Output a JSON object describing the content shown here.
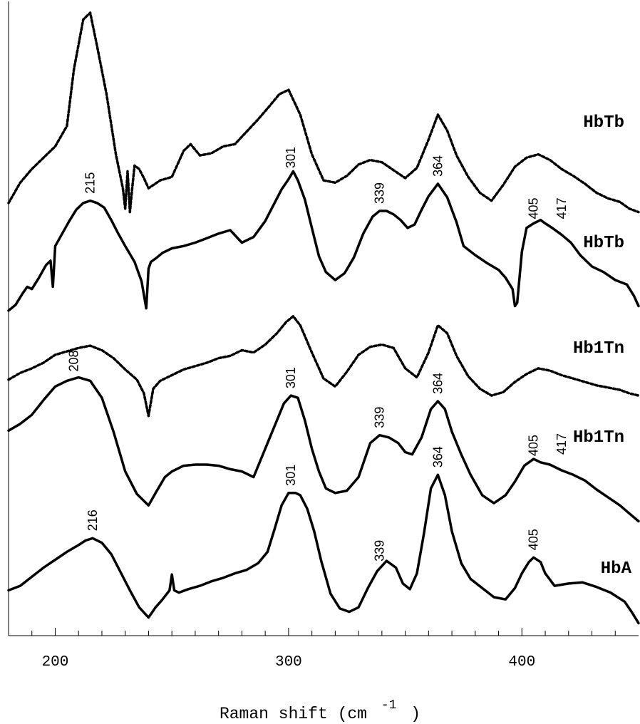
{
  "chart_data": {
    "type": "line",
    "title": "",
    "xlabel": "Raman shift (cm",
    "xlabel_sup": "-1",
    "xlabel_close": ")",
    "xlim": [
      180,
      450
    ],
    "xticks": [
      200,
      300,
      400
    ],
    "xtick_labels": [
      "200",
      "300",
      "400"
    ],
    "ylabel": "",
    "grid": false,
    "series": [
      {
        "name": "HbTb",
        "style": "dotted",
        "peaks": [],
        "x": [
          180,
          185,
          190,
          195,
          200,
          205,
          208,
          212,
          215,
          218,
          222,
          226,
          229,
          230,
          231,
          232,
          233,
          234,
          236,
          238,
          240,
          245,
          250,
          255,
          258,
          262,
          267,
          272,
          277,
          282,
          287,
          292,
          296,
          300,
          305,
          310,
          315,
          320,
          325,
          330,
          335,
          340,
          345,
          350,
          355,
          360,
          364,
          368,
          372,
          377,
          382,
          387,
          392,
          397,
          402,
          407,
          412,
          417,
          422,
          427,
          432,
          437,
          442,
          446,
          450
        ],
        "y": [
          -2.8,
          -1.0,
          0.2,
          1.2,
          2.2,
          4.0,
          9.0,
          13.4,
          14.0,
          11.0,
          6.8,
          1.5,
          -1.5,
          -3.3,
          0.0,
          -3.6,
          -1.5,
          0.5,
          0.2,
          -0.6,
          -1.5,
          -0.8,
          -0.5,
          1.8,
          2.4,
          1.4,
          1.6,
          2.2,
          2.4,
          3.5,
          4.6,
          5.8,
          6.8,
          7.2,
          5.0,
          1.5,
          -0.8,
          -1.0,
          -0.4,
          0.6,
          1.0,
          0.8,
          0.1,
          -0.6,
          0.3,
          2.8,
          5.0,
          3.6,
          1.4,
          -0.5,
          -1.9,
          -2.6,
          -1.2,
          0.4,
          1.2,
          1.5,
          1.0,
          0.2,
          -0.4,
          -1.1,
          -1.9,
          -2.4,
          -2.7,
          -3.3,
          -3.6
        ],
        "label_side": "right"
      },
      {
        "name": "HbTb",
        "style": "solid",
        "peaks": [
          "215",
          "301",
          "339",
          "364",
          "405",
          "417"
        ],
        "x": [
          180,
          183,
          186,
          188,
          190,
          193,
          196,
          198,
          199,
          200,
          203,
          206,
          209,
          212,
          215,
          218,
          221,
          224,
          227,
          230,
          234,
          237,
          239,
          240,
          241,
          243,
          246,
          250,
          255,
          260,
          265,
          270,
          275,
          280,
          285,
          290,
          294,
          297,
          300,
          302,
          304,
          307,
          310,
          313,
          316,
          320,
          324,
          328,
          332,
          336,
          339,
          342,
          345,
          348,
          351,
          354,
          357,
          360,
          364,
          368,
          372,
          375,
          380,
          385,
          390,
          393,
          396,
          397,
          398,
          400,
          402,
          405,
          408,
          410,
          413,
          417,
          421,
          425,
          430,
          435,
          440,
          445,
          448,
          450
        ],
        "y": [
          -12.3,
          -11.8,
          -10.8,
          -10.2,
          -10.4,
          -9.4,
          -8.3,
          -7.9,
          -10.2,
          -6.6,
          -5.5,
          -4.4,
          -3.4,
          -2.8,
          -2.6,
          -2.8,
          -3.2,
          -4.3,
          -5.5,
          -6.6,
          -8.0,
          -9.7,
          -12.1,
          -8.6,
          -8.0,
          -7.7,
          -7.2,
          -6.8,
          -6.6,
          -6.3,
          -5.9,
          -5.5,
          -5.2,
          -6.3,
          -5.8,
          -4.4,
          -2.8,
          -1.6,
          -0.7,
          0.0,
          -0.8,
          -2.5,
          -5.0,
          -7.5,
          -8.9,
          -9.6,
          -9.0,
          -7.6,
          -5.5,
          -4.0,
          -3.5,
          -3.5,
          -3.8,
          -4.3,
          -5.0,
          -4.7,
          -3.4,
          -2.2,
          -1.1,
          -2.3,
          -4.5,
          -6.6,
          -7.4,
          -8.1,
          -8.7,
          -9.4,
          -10.4,
          -11.9,
          -11.6,
          -7.1,
          -5.0,
          -4.6,
          -4.3,
          -4.6,
          -5.0,
          -5.6,
          -6.3,
          -7.4,
          -8.4,
          -8.9,
          -9.6,
          -10.0,
          -11.0,
          -11.9
        ],
        "label_side": "right"
      },
      {
        "name": "Hb1Tn",
        "style": "dotted",
        "peaks": [],
        "x": [
          180,
          185,
          190,
          195,
          200,
          205,
          210,
          215,
          220,
          225,
          230,
          235,
          238,
          240,
          242,
          245,
          250,
          255,
          260,
          265,
          270,
          275,
          280,
          285,
          290,
          295,
          299,
          302,
          305,
          310,
          315,
          320,
          325,
          330,
          335,
          340,
          345,
          350,
          355,
          360,
          364,
          368,
          372,
          377,
          382,
          387,
          392,
          397,
          402,
          407,
          412,
          417,
          422,
          427,
          432,
          437,
          442,
          446,
          450
        ],
        "y": [
          -18.4,
          -17.8,
          -17.4,
          -16.9,
          -16.2,
          -15.9,
          -15.6,
          -15.4,
          -15.8,
          -16.5,
          -17.5,
          -18.4,
          -19.6,
          -21.6,
          -19.2,
          -18.5,
          -18.0,
          -17.5,
          -17.2,
          -16.9,
          -16.5,
          -16.3,
          -15.8,
          -16.0,
          -15.3,
          -14.3,
          -13.3,
          -12.8,
          -13.6,
          -16.0,
          -18.3,
          -19.0,
          -17.7,
          -16.2,
          -15.5,
          -15.3,
          -15.6,
          -17.4,
          -18.2,
          -16.0,
          -13.6,
          -14.3,
          -16.3,
          -18.1,
          -19.2,
          -19.8,
          -19.5,
          -18.6,
          -17.9,
          -17.4,
          -17.6,
          -18.0,
          -18.3,
          -18.6,
          -18.9,
          -19.1,
          -19.3,
          -19.6,
          -19.8
        ],
        "label_side": "right"
      },
      {
        "name": "Hb1Tn",
        "style": "solid",
        "peaks": [
          "208",
          "301",
          "339",
          "364",
          "405",
          "417"
        ],
        "x": [
          180,
          185,
          190,
          195,
          200,
          205,
          210,
          215,
          220,
          225,
          230,
          235,
          240,
          243,
          247,
          250,
          255,
          260,
          265,
          270,
          275,
          280,
          285,
          290,
          295,
          298,
          301,
          304,
          307,
          310,
          313,
          316,
          320,
          325,
          330,
          335,
          339,
          343,
          347,
          350,
          353,
          357,
          361,
          364,
          367,
          370,
          374,
          378,
          383,
          388,
          393,
          397,
          401,
          405,
          408,
          412,
          417,
          422,
          427,
          432,
          437,
          442,
          446,
          450
        ],
        "y": [
          -22.9,
          -22.3,
          -21.5,
          -20.2,
          -19.0,
          -18.5,
          -18.2,
          -18.5,
          -20.0,
          -23.0,
          -26.5,
          -28.5,
          -29.5,
          -28.4,
          -27.0,
          -26.5,
          -26.0,
          -25.9,
          -25.9,
          -26.0,
          -26.3,
          -26.5,
          -27.0,
          -24.5,
          -22.0,
          -20.5,
          -19.8,
          -20.0,
          -22.0,
          -24.5,
          -26.5,
          -28.0,
          -28.4,
          -28.2,
          -27.0,
          -24.0,
          -23.3,
          -23.5,
          -24.0,
          -24.8,
          -25.0,
          -23.5,
          -21.0,
          -20.3,
          -21.0,
          -23.0,
          -25.0,
          -26.8,
          -28.6,
          -29.3,
          -28.6,
          -27.4,
          -26.0,
          -25.4,
          -25.7,
          -25.9,
          -26.4,
          -26.8,
          -27.3,
          -28.1,
          -28.8,
          -29.5,
          -30.2,
          -30.9
        ],
        "label_side": "right"
      },
      {
        "name": "HbA",
        "style": "solid",
        "peaks": [
          "216",
          "301",
          "339",
          "364",
          "405"
        ],
        "x": [
          180,
          185,
          190,
          195,
          200,
          205,
          210,
          213,
          216,
          220,
          224,
          228,
          232,
          236,
          240,
          243,
          246,
          249,
          250,
          251,
          253,
          257,
          262,
          267,
          272,
          277,
          282,
          287,
          291,
          294,
          297,
          300,
          303,
          305,
          308,
          311,
          314,
          318,
          322,
          326,
          330,
          334,
          338,
          342,
          346,
          349,
          352,
          355,
          358,
          361,
          364,
          367,
          370,
          374,
          378,
          383,
          388,
          393,
          397,
          400,
          403,
          405,
          408,
          410,
          414,
          420,
          426,
          432,
          438,
          444,
          447,
          450
        ],
        "y": [
          -37.0,
          -36.6,
          -35.8,
          -35.0,
          -34.3,
          -33.6,
          -33.0,
          -32.6,
          -32.4,
          -32.8,
          -33.8,
          -35.4,
          -37.0,
          -38.5,
          -39.4,
          -38.5,
          -37.8,
          -37.0,
          -35.6,
          -37.0,
          -37.2,
          -36.9,
          -36.6,
          -36.2,
          -35.9,
          -35.5,
          -35.2,
          -34.6,
          -33.6,
          -31.6,
          -29.5,
          -28.4,
          -28.4,
          -28.6,
          -29.8,
          -31.8,
          -34.4,
          -37.3,
          -38.6,
          -38.9,
          -38.5,
          -36.8,
          -35.3,
          -34.4,
          -35.0,
          -36.4,
          -36.9,
          -35.5,
          -32.0,
          -28.0,
          -26.8,
          -28.6,
          -31.8,
          -34.6,
          -36.0,
          -36.8,
          -37.6,
          -37.8,
          -36.8,
          -35.5,
          -34.5,
          -34.1,
          -34.5,
          -35.5,
          -36.6,
          -36.4,
          -36.3,
          -36.7,
          -37.2,
          -38.0,
          -38.9,
          -39.9
        ],
        "label_side": "right"
      }
    ]
  }
}
